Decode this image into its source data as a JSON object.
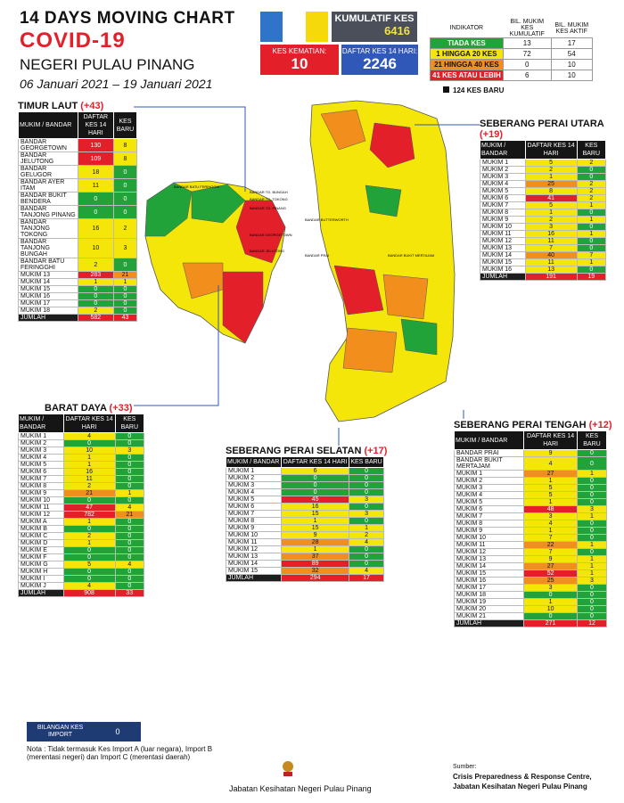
{
  "header": {
    "line1": "14  DAYS MOVING CHART",
    "line2": "COVID-19",
    "line3": "NEGERI PULAU PINANG",
    "line4": "06 Januari 2021 – 19 Januari 2021"
  },
  "kpi": {
    "kumulatif_label": "KUMULATIF KES",
    "kumulatif_value": "6416",
    "kematian_label": "KES KEMATIAN:",
    "kematian_value": "10",
    "daftar_label": "DAFTAR KES 14 HARI:",
    "daftar_value": "2246"
  },
  "legend": {
    "h1": "INDIKATOR",
    "h2": "BIL. MUKIM KES KUMULATIF",
    "h3": "BIL. MUKIM KES AKTIF",
    "rows": [
      {
        "label": "TIADA KES",
        "cum": "13",
        "act": "17",
        "color": "#22a33a"
      },
      {
        "label": "1 HINGGA 20 KES",
        "cum": "72",
        "act": "54",
        "color": "#f5e60a"
      },
      {
        "label": "21 HINGGA 40 KES",
        "cum": "0",
        "act": "10",
        "color": "#f28e1c"
      },
      {
        "label": "41 KES ATAU LEBIH",
        "cum": "6",
        "act": "10",
        "color": "#e3202a"
      }
    ],
    "baru": "124 KES BARU"
  },
  "colors": {
    "red": "#e3202a",
    "orange": "#f28e1c",
    "yellow": "#f5e60a",
    "green": "#22a33a",
    "flag_blue": "#2f74c8",
    "flag_white": "#ffffff",
    "flag_yellow": "#f5d90a"
  },
  "sections": {
    "tl": {
      "title": "TIMUR LAUT",
      "count": "(+43)",
      "h1": "MUKIM / BANDAR",
      "h2": "DAFTAR KES 14 HARI",
      "h3": "KES BARU",
      "rows": [
        [
          "BANDAR GEORGETOWN",
          "130",
          "8"
        ],
        [
          "BANDAR JELUTONG",
          "109",
          "8"
        ],
        [
          "BANDAR GELUGOR",
          "18",
          "0"
        ],
        [
          "BANDAR AYER ITAM",
          "11",
          "0"
        ],
        [
          "BANDAR BUKIT BENDERA",
          "0",
          "0"
        ],
        [
          "BANDAR TANJONG PINANG",
          "0",
          "0"
        ],
        [
          "BANDAR TANJONG TOKONG",
          "16",
          "2"
        ],
        [
          "BANDAR TANJONG BUNGAH",
          "10",
          "3"
        ],
        [
          "BANDAR BATU FERINGGHI",
          "2",
          "0"
        ],
        [
          "MUKIM 13",
          "283",
          "21"
        ],
        [
          "MUKIM 14",
          "1",
          "1"
        ],
        [
          "MUKIM 15",
          "0",
          "0"
        ],
        [
          "MUKIM 16",
          "0",
          "0"
        ],
        [
          "MUKIM 17",
          "0",
          "0"
        ],
        [
          "MUKIM 18",
          "2",
          "0"
        ]
      ],
      "total": [
        "JUMLAH",
        "582",
        "43"
      ]
    },
    "bd": {
      "title": "BARAT DAYA",
      "count": "(+33)",
      "h1": "MUKIM / BANDAR",
      "h2": "DAFTAR KES 14 HARI",
      "h3": "KES BARU",
      "rows": [
        [
          "MUKIM 1",
          "4",
          "0"
        ],
        [
          "MUKIM 2",
          "0",
          "0"
        ],
        [
          "MUKIM 3",
          "10",
          "3"
        ],
        [
          "MUKIM 4",
          "1",
          "0"
        ],
        [
          "MUKIM 5",
          "1",
          "0"
        ],
        [
          "MUKIM 6",
          "16",
          "0"
        ],
        [
          "MUKIM 7",
          "11",
          "0"
        ],
        [
          "MUKIM 8",
          "2",
          "0"
        ],
        [
          "MUKIM 9",
          "21",
          "1"
        ],
        [
          "MUKIM 10",
          "0",
          "0"
        ],
        [
          "MUKIM 11",
          "47",
          "4"
        ],
        [
          "MUKIM 12",
          "782",
          "21"
        ],
        [
          "MUKIM A",
          "1",
          "0"
        ],
        [
          "MUKIM B",
          "0",
          "0"
        ],
        [
          "MUKIM C",
          "2",
          "0"
        ],
        [
          "MUKIM D",
          "1",
          "0"
        ],
        [
          "MUKIM E",
          "0",
          "0"
        ],
        [
          "MUKIM F",
          "0",
          "0"
        ],
        [
          "MUKIM G",
          "5",
          "4"
        ],
        [
          "MUKIM H",
          "0",
          "0"
        ],
        [
          "MUKIM I",
          "0",
          "0"
        ],
        [
          "MUKIM J",
          "4",
          "0"
        ]
      ],
      "total": [
        "JUMLAH",
        "908",
        "33"
      ]
    },
    "spu": {
      "title": "SEBERANG PERAI UTARA",
      "count": "(+19)",
      "h1": "MUKIM / BANDAR",
      "h2": "DAFTAR KES 14 HARI",
      "h3": "KES BARU",
      "rows": [
        [
          "MUKIM 1",
          "5",
          "2"
        ],
        [
          "MUKIM 2",
          "2",
          "0"
        ],
        [
          "MUKIM 3",
          "1",
          "0"
        ],
        [
          "MUKIM 4",
          "25",
          "2"
        ],
        [
          "MUKIM 5",
          "8",
          "2"
        ],
        [
          "MUKIM 6",
          "41",
          "2"
        ],
        [
          "MUKIM 7",
          "5",
          "1"
        ],
        [
          "MUKIM 8",
          "1",
          "0"
        ],
        [
          "MUKIM 9",
          "2",
          "1"
        ],
        [
          "MUKIM 10",
          "3",
          "0"
        ],
        [
          "MUKIM 11",
          "16",
          "1"
        ],
        [
          "MUKIM 12",
          "11",
          "0"
        ],
        [
          "MUKIM 13",
          "7",
          "0"
        ],
        [
          "MUKIM 14",
          "40",
          "7"
        ],
        [
          "MUKIM 15",
          "11",
          "1"
        ],
        [
          "MUKIM 16",
          "13",
          "0"
        ]
      ],
      "total": [
        "JUMLAH",
        "191",
        "19"
      ]
    },
    "sps": {
      "title": "SEBERANG PERAI SELATAN",
      "count": "(+17)",
      "h1": "MUKIM / BANDAR",
      "h2": "DAFTAR KES 14 HARI",
      "h3": "KES BARU",
      "rows": [
        [
          "MUKIM 1",
          "6",
          "0"
        ],
        [
          "MUKIM 2",
          "0",
          "0"
        ],
        [
          "MUKIM 3",
          "0",
          "0"
        ],
        [
          "MUKIM 4",
          "0",
          "0"
        ],
        [
          "MUKIM 5",
          "45",
          "3"
        ],
        [
          "MUKIM 6",
          "16",
          "0"
        ],
        [
          "MUKIM 7",
          "15",
          "3"
        ],
        [
          "MUKIM 8",
          "1",
          "0"
        ],
        [
          "MUKIM 9",
          "15",
          "1"
        ],
        [
          "MUKIM 10",
          "9",
          "2"
        ],
        [
          "MUKIM 11",
          "28",
          "4"
        ],
        [
          "MUKIM 12",
          "1",
          "0"
        ],
        [
          "MUKIM 13",
          "37",
          "0"
        ],
        [
          "MUKIM 14",
          "89",
          "0"
        ],
        [
          "MUKIM 15",
          "32",
          "4"
        ]
      ],
      "total": [
        "JUMLAH",
        "294",
        "17"
      ]
    },
    "spt": {
      "title": "SEBERANG PERAI TENGAH",
      "count": "(+12)",
      "h1": "MUKIM / BANDAR",
      "h2": "DAFTAR KES 14 HARI",
      "h3": "KES BARU",
      "rows": [
        [
          "BANDAR PRAI",
          "9",
          "0"
        ],
        [
          "BANDAR BUKIT MERTAJAM",
          "4",
          "0"
        ],
        [
          "MUKIM 1",
          "27",
          "1"
        ],
        [
          "MUKIM 2",
          "1",
          "0"
        ],
        [
          "MUKIM 3",
          "5",
          "0"
        ],
        [
          "MUKIM 4",
          "5",
          "0"
        ],
        [
          "MUKIM 5",
          "1",
          "0"
        ],
        [
          "MUKIM 6",
          "48",
          "3"
        ],
        [
          "MUKIM 7",
          "3",
          "1"
        ],
        [
          "MUKIM 8",
          "4",
          "0"
        ],
        [
          "MUKIM 9",
          "1",
          "0"
        ],
        [
          "MUKIM 10",
          "7",
          "0"
        ],
        [
          "MUKIM 11",
          "22",
          "1"
        ],
        [
          "MUKIM 12",
          "7",
          "0"
        ],
        [
          "MUKIM 13",
          "9",
          "1"
        ],
        [
          "MUKIM 14",
          "27",
          "1"
        ],
        [
          "MUKIM 15",
          "52",
          "1"
        ],
        [
          "MUKIM 16",
          "25",
          "3"
        ],
        [
          "MUKIM 17",
          "3",
          "0"
        ],
        [
          "MUKIM 18",
          "0",
          "0"
        ],
        [
          "MUKIM 19",
          "1",
          "0"
        ],
        [
          "MUKIM 20",
          "10",
          "0"
        ],
        [
          "MUKIM 21",
          "0",
          "0"
        ]
      ],
      "total": [
        "JUMLAH",
        "271",
        "12"
      ]
    }
  },
  "import": {
    "label": "BILANGAN KES IMPORT",
    "value": "0"
  },
  "note": "Nota : Tidak termasuk Kes Import A (luar negara), Import B (merentasi negeri) dan Import C (merentasi daerah)",
  "footer": {
    "jabatan": "Jabatan Kesihatan Negeri Pulau Pinang",
    "sumber_label": "Sumber:",
    "sumber1": "Crisis Preparedness & Response Centre,",
    "sumber2": "Jabatan Kesihatan Negeri Pulau Pinang"
  },
  "map_labels": {
    "island": [
      "BANDAR BATU FERINGGHI",
      "BANDAR TG. BUNGAH",
      "BANDAR TG. TOKONG",
      "BANDAR TG. PINANG",
      "BANDAR GEORGETOWN",
      "BANDAR JELUTONG"
    ],
    "mainland": [
      "BANDAR BUTTERWORTH",
      "BANDAR PRAI",
      "BANDAR BUKIT MERTAJAM"
    ]
  },
  "chart_data": {
    "type": "table",
    "title": "14 DAYS MOVING CHART COVID-19 NEGERI PULAU PINANG",
    "subtitle": "06 Januari 2021 – 19 Januari 2021",
    "columns": [
      "MUKIM / BANDAR",
      "DAFTAR KES 14 HARI",
      "KES BARU"
    ],
    "thresholds": {
      "green": "0",
      "yellow": "1-20",
      "orange": "21-40",
      "red": "41+"
    },
    "district_totals": [
      {
        "district": "TIMUR LAUT",
        "cases_14d": 582,
        "new": 43
      },
      {
        "district": "BARAT DAYA",
        "cases_14d": 908,
        "new": 33
      },
      {
        "district": "SEBERANG PERAI UTARA",
        "cases_14d": 191,
        "new": 19
      },
      {
        "district": "SEBERANG PERAI SELATAN",
        "cases_14d": 294,
        "new": 17
      },
      {
        "district": "SEBERANG PERAI TENGAH",
        "cases_14d": 271,
        "new": 12
      }
    ]
  }
}
